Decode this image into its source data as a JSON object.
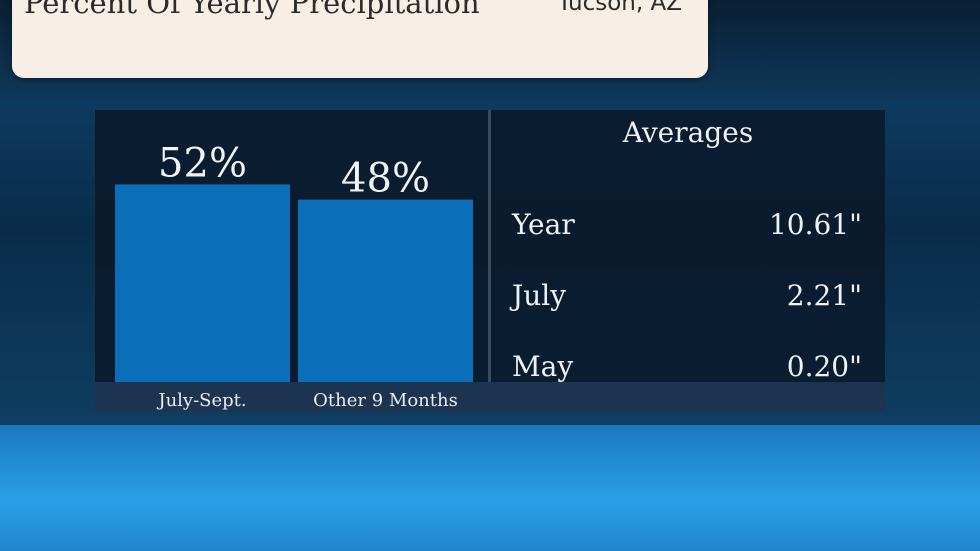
{
  "header": {
    "title": "Percent Of Yearly Precipitation",
    "location": "Tucson, AZ"
  },
  "chart_data": {
    "type": "bar",
    "categories": [
      "July-Sept.",
      "Other 9 Months"
    ],
    "values": [
      52,
      48
    ],
    "value_labels": [
      "52%",
      "48%"
    ],
    "unit": "%",
    "title": "Percent Of Yearly Precipitation",
    "xlabel": "",
    "ylabel": "",
    "ylim": [
      0,
      55
    ],
    "bar_color": "#0a6fb8",
    "grid": false
  },
  "averages": {
    "title": "Averages",
    "rows": [
      {
        "label": "Year",
        "value": "10.61\""
      },
      {
        "label": "July",
        "value": "2.21\""
      },
      {
        "label": "May",
        "value": "0.20\""
      }
    ]
  }
}
